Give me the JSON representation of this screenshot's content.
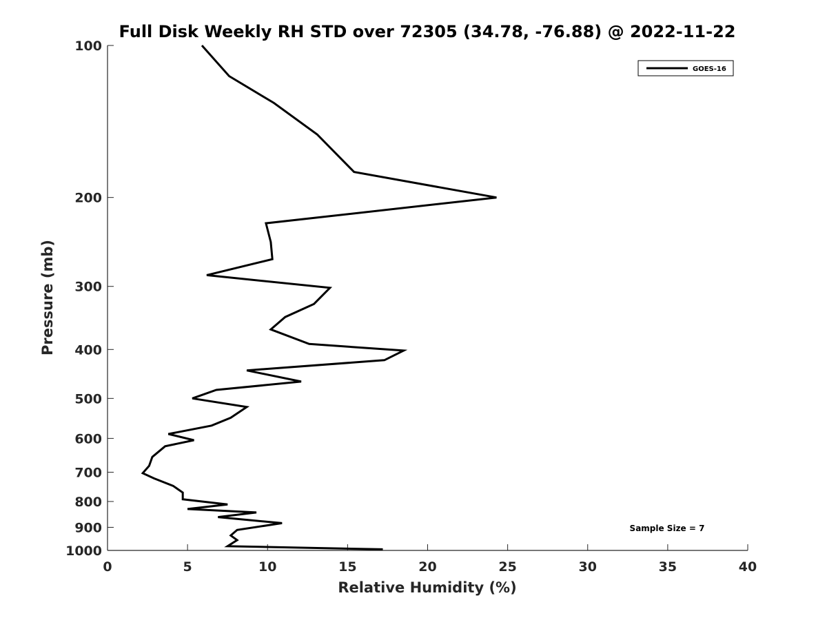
{
  "chart_data": {
    "type": "line",
    "title": "Full Disk Weekly RH STD over 72305 (34.78, -76.88) @ 2022-11-22",
    "xlabel": "Relative Humidity (%)",
    "ylabel": "Pressure (mb)",
    "xlim": [
      0,
      40
    ],
    "ylim": [
      100,
      1000
    ],
    "yscale": "log",
    "y_reversed": true,
    "grid": false,
    "legend_position": "top-right",
    "xticks": [
      "0",
      "5",
      "10",
      "15",
      "20",
      "25",
      "30",
      "35",
      "40"
    ],
    "yticks": [
      "100",
      "200",
      "300",
      "400",
      "500",
      "600",
      "700",
      "800",
      "900",
      "1000"
    ],
    "xtick_values": [
      0,
      5,
      10,
      15,
      20,
      25,
      30,
      35,
      40
    ],
    "ytick_values": [
      100,
      200,
      300,
      400,
      500,
      600,
      700,
      800,
      900,
      1000
    ],
    "annotation": "Sample Size = 7",
    "series": [
      {
        "name": "GOES-16",
        "color": "#000000",
        "x": [
          5.9,
          7.6,
          10.4,
          13.1,
          15.4,
          24.3,
          9.9,
          10.2,
          10.3,
          6.2,
          13.9,
          12.9,
          11.1,
          10.2,
          12.6,
          18.5,
          17.3,
          8.7,
          12.1,
          6.8,
          5.3,
          8.7,
          7.7,
          6.5,
          3.8,
          5.4,
          3.6,
          2.8,
          2.6,
          2.2,
          2.9,
          4.1,
          4.7,
          4.7,
          7.5,
          5.0,
          9.3,
          6.9,
          10.9,
          8.1,
          7.7,
          8.1,
          7.5,
          17.2
        ],
        "y": [
          100,
          115,
          130,
          150,
          178,
          200,
          225,
          245,
          265,
          285,
          302,
          325,
          345,
          365,
          390,
          402,
          420,
          440,
          463,
          481,
          500,
          520,
          546,
          566,
          588,
          605,
          622,
          653,
          680,
          703,
          720,
          745,
          768,
          792,
          811,
          828,
          841,
          859,
          883,
          911,
          934,
          954,
          981,
          995
        ]
      }
    ]
  }
}
